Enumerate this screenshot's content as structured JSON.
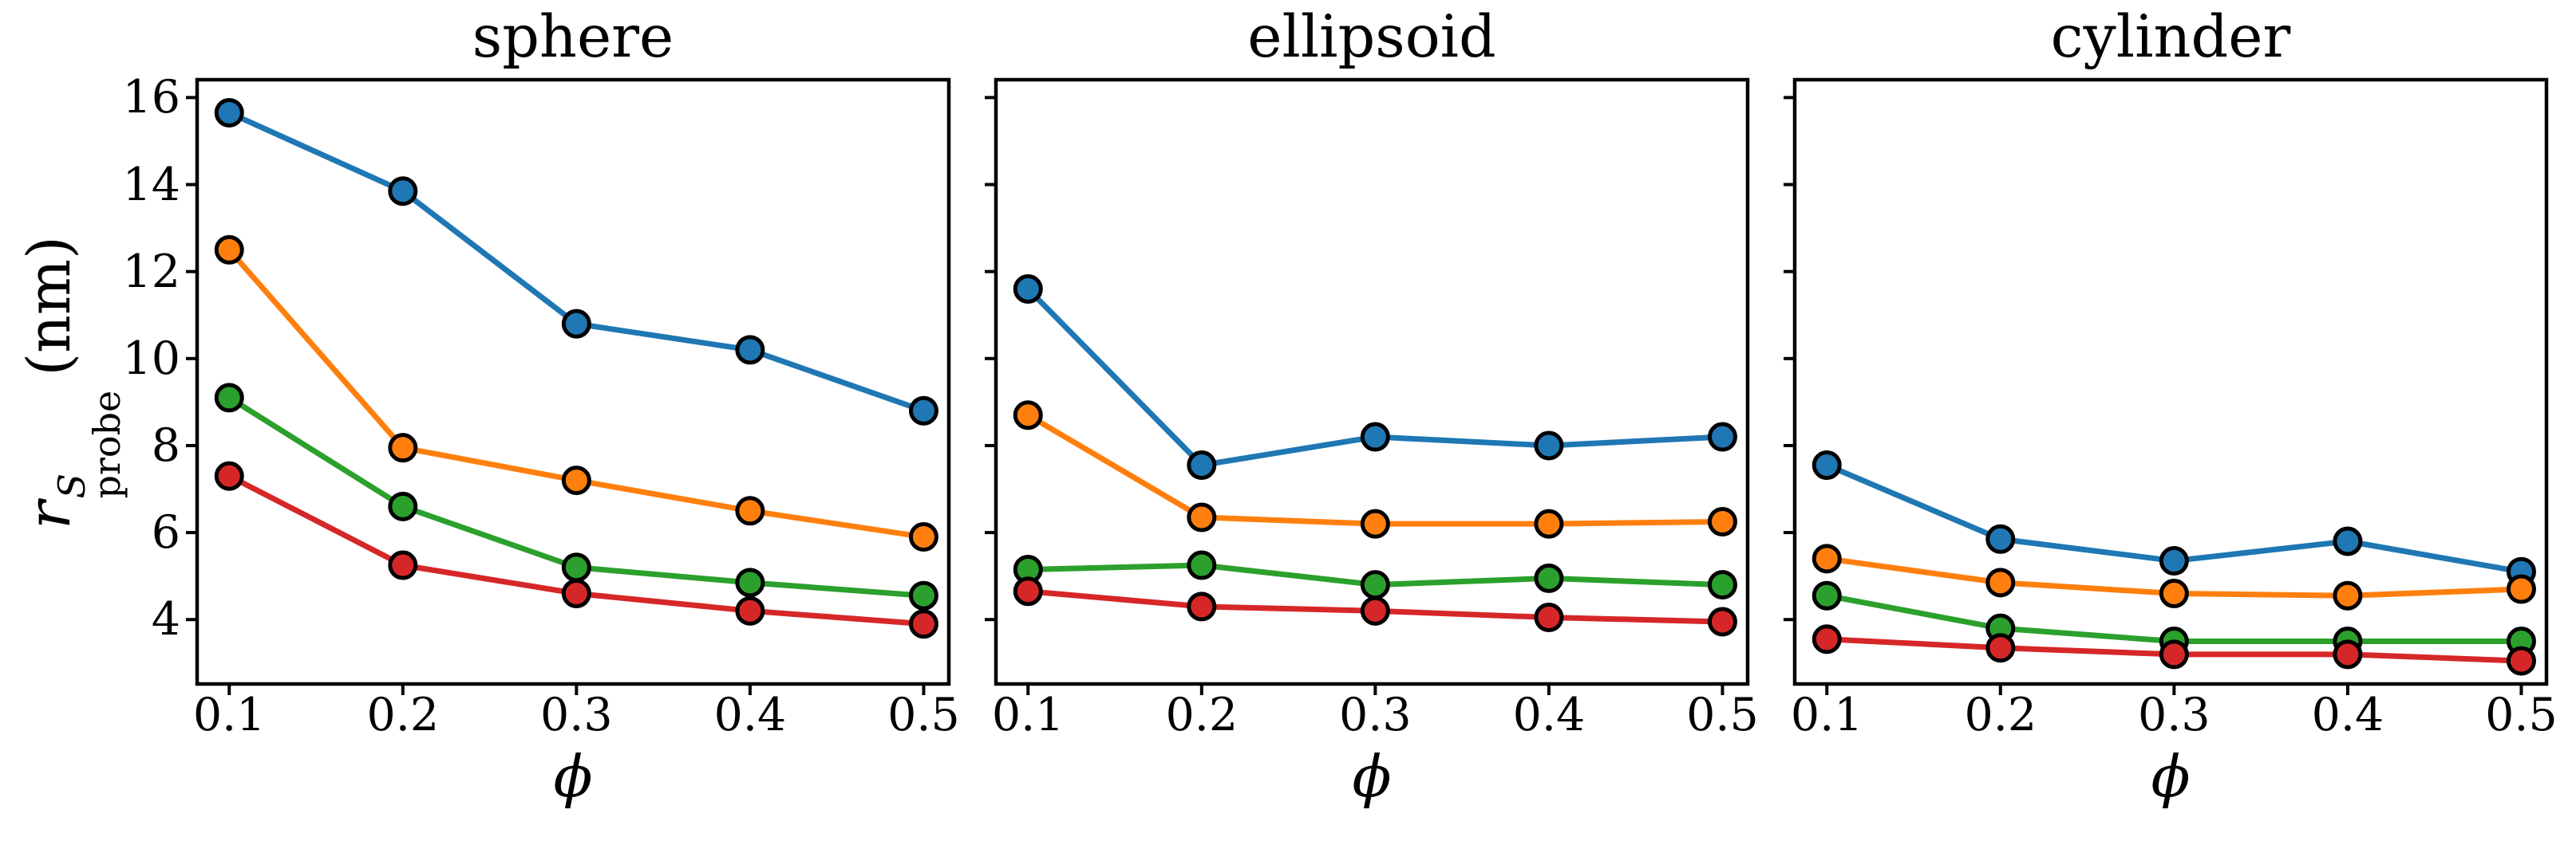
{
  "figure": {
    "xlabel": "ϕ",
    "ylabel": {
      "base": "r",
      "sup": "S",
      "sub": "probe",
      "unit": "(nm)"
    },
    "background": "#ffffff"
  },
  "axes": {
    "axis_color": "#000000",
    "xlim": [
      0.0815,
      0.5145
    ],
    "ylim": [
      2.52,
      16.41
    ],
    "x_tick_labels": [
      "0.1",
      "0.2",
      "0.3",
      "0.4",
      "0.5"
    ],
    "y_tick_labels": [
      "16",
      "14",
      "12",
      "10",
      "8",
      "6",
      "4"
    ],
    "grid": false,
    "legend": "none"
  },
  "series_colors": [
    "#1f77b4",
    "#ff7f0e",
    "#2ca02c",
    "#d62728"
  ],
  "chart_data": [
    {
      "type": "line",
      "title": "sphere",
      "xlabel": "ϕ",
      "ylabel": "r_probe^S (nm)",
      "x": [
        0.1,
        0.2,
        0.3,
        0.4,
        0.5
      ],
      "xlim": [
        0.0815,
        0.5145
      ],
      "ylim": [
        2.52,
        16.41
      ],
      "y_ticks": [
        4,
        6,
        8,
        10,
        12,
        14,
        16
      ],
      "series": [
        {
          "name": "blue",
          "color": "#1f77b4",
          "values": [
            15.65,
            13.85,
            10.8,
            10.2,
            8.8
          ]
        },
        {
          "name": "orange",
          "color": "#ff7f0e",
          "values": [
            12.5,
            7.95,
            7.2,
            6.5,
            5.9
          ]
        },
        {
          "name": "green",
          "color": "#2ca02c",
          "values": [
            9.1,
            6.6,
            5.2,
            4.85,
            4.55
          ]
        },
        {
          "name": "red",
          "color": "#d62728",
          "values": [
            7.3,
            5.25,
            4.6,
            4.2,
            3.9
          ]
        }
      ]
    },
    {
      "type": "line",
      "title": "ellipsoid",
      "xlabel": "ϕ",
      "ylabel": "r_probe^S (nm)",
      "x": [
        0.1,
        0.2,
        0.3,
        0.4,
        0.5
      ],
      "xlim": [
        0.0815,
        0.5145
      ],
      "ylim": [
        2.52,
        16.41
      ],
      "y_ticks": [
        4,
        6,
        8,
        10,
        12,
        14,
        16
      ],
      "series": [
        {
          "name": "blue",
          "color": "#1f77b4",
          "values": [
            11.6,
            7.55,
            8.2,
            8.0,
            8.2
          ]
        },
        {
          "name": "orange",
          "color": "#ff7f0e",
          "values": [
            8.7,
            6.35,
            6.2,
            6.2,
            6.25
          ]
        },
        {
          "name": "green",
          "color": "#2ca02c",
          "values": [
            5.15,
            5.25,
            4.8,
            4.95,
            4.8
          ]
        },
        {
          "name": "red",
          "color": "#d62728",
          "values": [
            4.65,
            4.3,
            4.2,
            4.05,
            3.95
          ]
        }
      ]
    },
    {
      "type": "line",
      "title": "cylinder",
      "xlabel": "ϕ",
      "ylabel": "r_probe^S (nm)",
      "x": [
        0.1,
        0.2,
        0.3,
        0.4,
        0.5
      ],
      "xlim": [
        0.0815,
        0.5145
      ],
      "ylim": [
        2.52,
        16.41
      ],
      "y_ticks": [
        4,
        6,
        8,
        10,
        12,
        14,
        16
      ],
      "series": [
        {
          "name": "blue",
          "color": "#1f77b4",
          "values": [
            7.55,
            5.85,
            5.35,
            5.8,
            5.1
          ]
        },
        {
          "name": "orange",
          "color": "#ff7f0e",
          "values": [
            5.4,
            4.85,
            4.6,
            4.55,
            4.7
          ]
        },
        {
          "name": "green",
          "color": "#2ca02c",
          "values": [
            4.55,
            3.8,
            3.5,
            3.5,
            3.5
          ]
        },
        {
          "name": "red",
          "color": "#d62728",
          "values": [
            3.55,
            3.35,
            3.2,
            3.2,
            3.05
          ]
        }
      ]
    }
  ]
}
